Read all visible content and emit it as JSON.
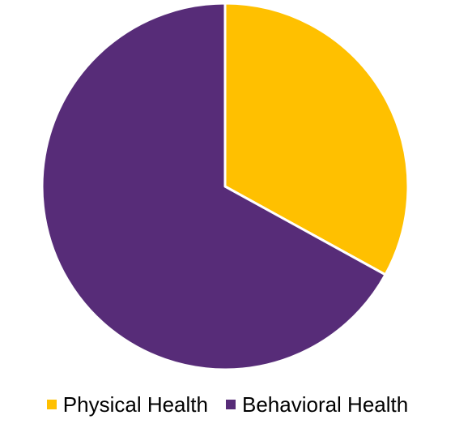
{
  "chart_data": {
    "type": "pie",
    "title": "",
    "slices": [
      {
        "label": "Physical Health",
        "value": 33,
        "color": "#FFC000"
      },
      {
        "label": "Behavioral Health",
        "value": 67,
        "color": "#572C78"
      }
    ],
    "legend_position": "bottom",
    "start_angle": "12 o'clock",
    "direction": "clockwise"
  },
  "legend": {
    "items": [
      {
        "label": "Physical Health",
        "color": "#FFC000"
      },
      {
        "label": "Behavioral Health",
        "color": "#572C78"
      }
    ]
  }
}
